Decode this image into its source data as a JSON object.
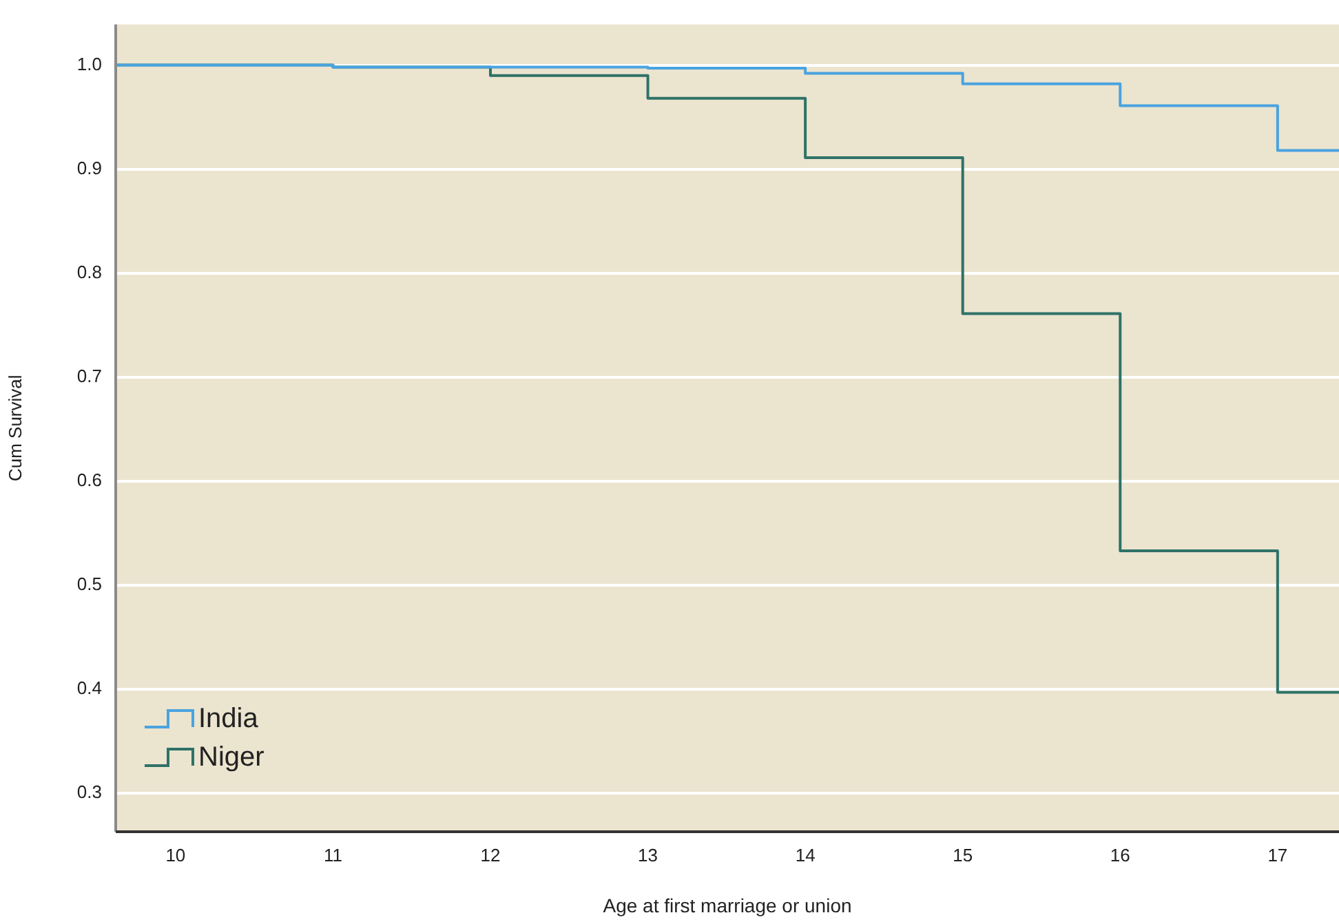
{
  "chart_data": {
    "type": "step",
    "xlabel": "Age at first marriage or union",
    "ylabel": "Cum Survival",
    "series": [
      {
        "name": "India",
        "color": "#4aa3df",
        "x": [
          9.62,
          11,
          12,
          13,
          14,
          15,
          16,
          17,
          17.39
        ],
        "values": [
          1.0,
          0.998,
          0.998,
          0.997,
          0.992,
          0.982,
          0.961,
          0.918,
          0.918
        ]
      },
      {
        "name": "Niger",
        "color": "#2e7267",
        "x": [
          9.62,
          11,
          12,
          13,
          14,
          15,
          16,
          17,
          17.39
        ],
        "values": [
          1.0,
          0.998,
          0.99,
          0.968,
          0.911,
          0.761,
          0.533,
          0.397,
          0.397
        ]
      }
    ],
    "xlim": [
      9.62,
      17.39
    ],
    "xticks": [
      10,
      11,
      12,
      13,
      14,
      15,
      16,
      17
    ],
    "ylim": [
      0.263,
      1.039
    ],
    "yticks": [
      {
        "value": 0.3,
        "label": "0.3"
      },
      {
        "value": 0.4,
        "label": "0.4"
      },
      {
        "value": 0.5,
        "label": "0.5"
      },
      {
        "value": 0.6,
        "label": "0.6"
      },
      {
        "value": 0.7,
        "label": "0.7"
      },
      {
        "value": 0.8,
        "label": "0.8"
      },
      {
        "value": 0.9,
        "label": "0.9"
      },
      {
        "value": 1.0,
        "label": "1.0"
      }
    ],
    "grid": "y",
    "legend": "bottom left",
    "marker": "none",
    "line_style": "solid"
  }
}
